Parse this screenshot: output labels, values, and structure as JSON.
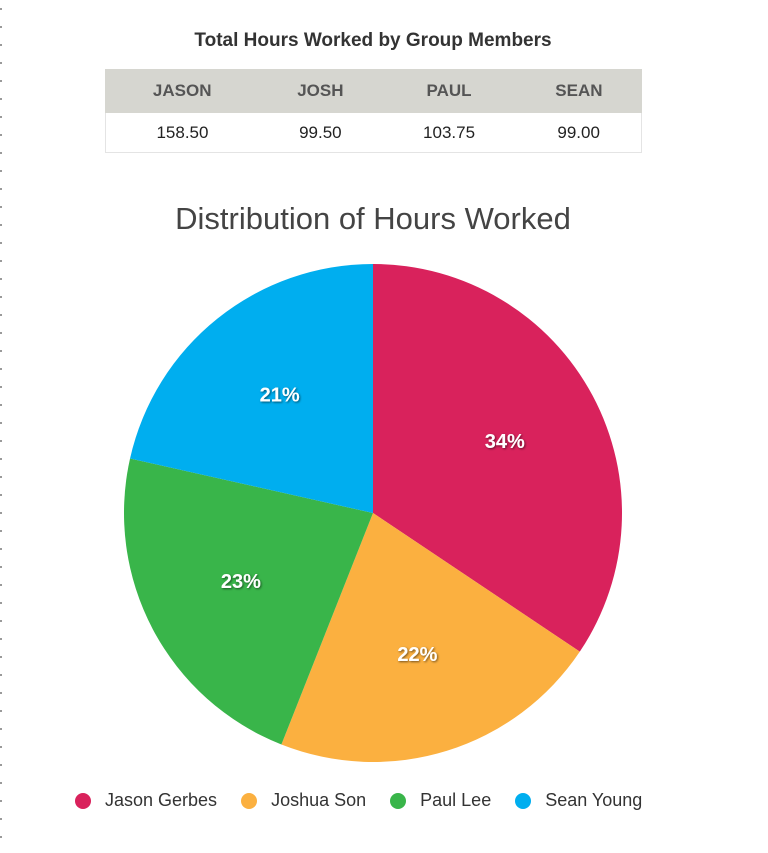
{
  "table": {
    "title": "Total Hours Worked by Group Members",
    "headers": [
      "JASON",
      "JOSH",
      "PAUL",
      "SEAN"
    ],
    "values": [
      "158.50",
      "99.50",
      "103.75",
      "99.00"
    ]
  },
  "chart_data": {
    "type": "pie",
    "title": "Distribution of Hours Worked",
    "labels": [
      "Jason Gerbes",
      "Joshua Son",
      "Paul Lee",
      "Sean Young"
    ],
    "values": [
      158.5,
      99.5,
      103.75,
      99.0
    ],
    "percent_labels": [
      "34%",
      "22%",
      "23%",
      "21%"
    ],
    "colors": [
      "#d9225c",
      "#fbb040",
      "#39b54a",
      "#00aeef"
    ],
    "start_angle_deg": 0,
    "direction": "clockwise",
    "legend_position": "bottom"
  }
}
